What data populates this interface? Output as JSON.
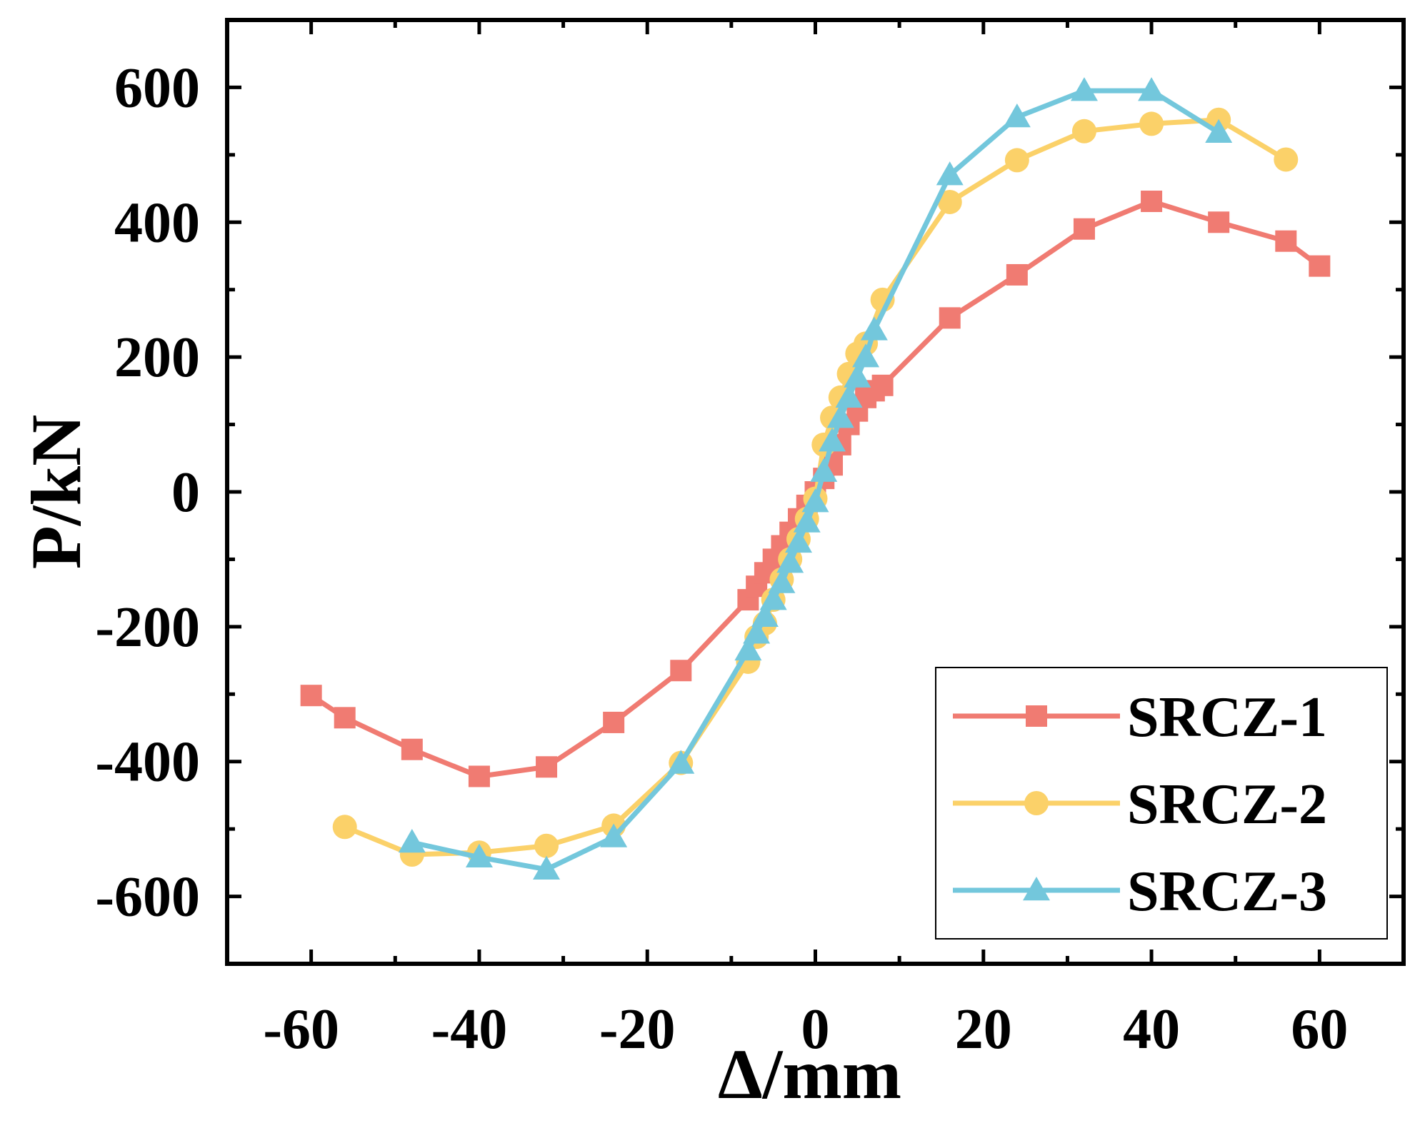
{
  "chart_data": {
    "type": "line",
    "title": "",
    "xlabel": "Δ/mm",
    "ylabel": "P/kN",
    "xlim": [
      -70,
      70
    ],
    "ylim": [
      -700,
      700
    ],
    "xticks": [
      -60,
      -40,
      -20,
      0,
      20,
      40,
      60
    ],
    "yticks": [
      -600,
      -400,
      -200,
      0,
      200,
      400,
      600
    ],
    "xtick_labels": [
      "-60",
      "-40",
      "-20",
      "0",
      "20",
      "40",
      "60"
    ],
    "ytick_labels": [
      "-600",
      "-400",
      "-200",
      "0",
      "200",
      "400",
      "600"
    ],
    "grid": false,
    "legend_position": "bottom-right",
    "series": [
      {
        "name": "SRCZ-1",
        "color": "#f07b72",
        "marker": "square",
        "x": [
          -60,
          -56,
          -48,
          -40,
          -32,
          -24,
          -16,
          -8,
          -7,
          -6,
          -5,
          -4,
          -3,
          -2,
          -1,
          0,
          1,
          2,
          3,
          4,
          5,
          6,
          7,
          8,
          16,
          24,
          32,
          40,
          48,
          56,
          60
        ],
        "y": [
          -302,
          -335,
          -382,
          -422,
          -408,
          -342,
          -265,
          -160,
          -140,
          -120,
          -100,
          -80,
          -60,
          -40,
          -20,
          0,
          20,
          40,
          70,
          100,
          120,
          140,
          150,
          158,
          258,
          322,
          390,
          431,
          400,
          372,
          335
        ]
      },
      {
        "name": "SRCZ-2",
        "color": "#fbd169",
        "marker": "circle",
        "x": [
          -56,
          -48,
          -40,
          -32,
          -24,
          -16,
          -8,
          -7,
          -6,
          -5,
          -4,
          -3,
          -2,
          -1,
          0,
          1,
          2,
          3,
          4,
          5,
          6,
          8,
          16,
          24,
          32,
          40,
          48,
          56
        ],
        "y": [
          -497,
          -538,
          -535,
          -525,
          -495,
          -402,
          -252,
          -215,
          -195,
          -160,
          -130,
          -100,
          -70,
          -40,
          -10,
          70,
          110,
          140,
          175,
          205,
          220,
          285,
          430,
          492,
          535,
          546,
          552,
          493
        ]
      },
      {
        "name": "SRCZ-3",
        "color": "#73c7dc",
        "marker": "triangle",
        "x": [
          -48,
          -40,
          -32,
          -24,
          -16,
          -8,
          -7,
          -6,
          -5,
          -4,
          -3,
          -2,
          -1,
          0,
          1,
          2,
          3,
          4,
          5,
          6,
          7,
          16,
          24,
          32,
          40,
          48
        ],
        "y": [
          -520,
          -542,
          -560,
          -512,
          -403,
          -235,
          -210,
          -185,
          -160,
          -135,
          -105,
          -75,
          -45,
          -15,
          30,
          75,
          110,
          140,
          170,
          200,
          240,
          470,
          556,
          595,
          595,
          533
        ]
      }
    ]
  }
}
